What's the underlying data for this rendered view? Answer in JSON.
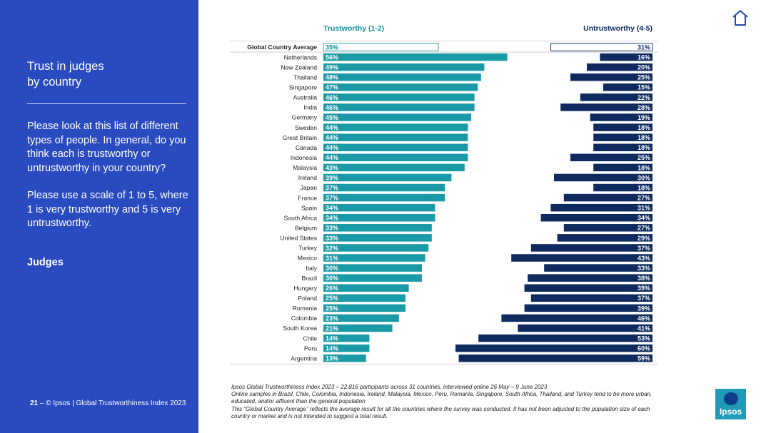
{
  "slide": {
    "title_line1": "Trust in judges",
    "title_line2": "by country",
    "question_p1": "Please look at this list of different types of people. In general, do you think each is trustworthy or untrustworthy in your country?",
    "question_p2": "Please use a scale of 1 to 5, where 1 is very trustworthy and 5 is very untrustworthy.",
    "subject": "Judges",
    "footer_page": "21",
    "footer_text": " – © Ipsos | Global Trustworthiness Index 2023"
  },
  "notes": {
    "line1": "Ipsos Global Trustworthiness Index 2023 – 22,816 participants across 31 countries, interviewed online 26 May – 9 June 2023",
    "line2": "Online samples in Brazil, Chile, Colombia, Indonesia, Ireland, Malaysia, Mexico, Peru, Romania, Singapore, South Africa, Thailand, and Turkey tend to be more urban, educated, and/or affluent than the general population",
    "line3": "This “Global Country Average” reflects the average result for all the countries where the survey was conducted. It has not been adjusted to the population size of each country or market and is not intended to suggest a total result."
  },
  "logo": {
    "text": "Ipsos"
  },
  "colors": {
    "sidebar": "#2a4bc0",
    "trustworthy": "#1a9aa6",
    "trustworthy_label": "#15909c",
    "untrustworthy": "#0e2a5e"
  },
  "icons": {
    "home": "home-icon"
  },
  "chart_data": {
    "type": "bar",
    "series": [
      {
        "name": "Trustworthy (1-2)",
        "values": [
          35,
          56,
          49,
          48,
          47,
          46,
          46,
          45,
          44,
          44,
          44,
          44,
          43,
          39,
          37,
          37,
          34,
          34,
          33,
          33,
          32,
          31,
          30,
          30,
          26,
          25,
          25,
          23,
          21,
          14,
          14,
          13
        ]
      },
      {
        "name": "Untrustworthy (4-5)",
        "values": [
          31,
          16,
          20,
          25,
          15,
          22,
          28,
          19,
          18,
          18,
          18,
          25,
          18,
          30,
          18,
          27,
          31,
          34,
          27,
          29,
          37,
          43,
          33,
          38,
          39,
          37,
          39,
          46,
          41,
          53,
          60,
          59
        ]
      }
    ],
    "categories": [
      "Global Country Average",
      "Netherlands",
      "New Zealand",
      "Thailand",
      "Singapore",
      "Australia",
      "India",
      "Germany",
      "Sweden",
      "Great Britain",
      "Canada",
      "Indonesia",
      "Malaysia",
      "Ireland",
      "Japan",
      "France",
      "Spain",
      "South Africa",
      "Belgium",
      "United States",
      "Turkey",
      "Mexico",
      "Italy",
      "Brazil",
      "Hungary",
      "Poland",
      "Romania",
      "Colombia",
      "South Korea",
      "Chile",
      "Peru",
      "Argentina"
    ],
    "value_suffix": "%",
    "highlight_first_row": true
  }
}
